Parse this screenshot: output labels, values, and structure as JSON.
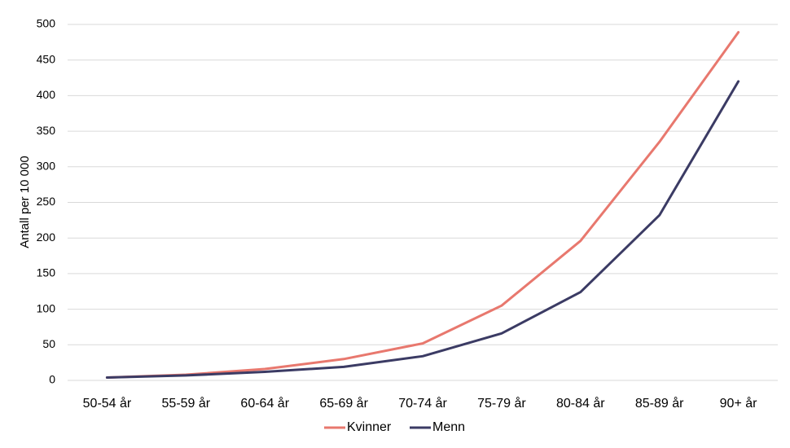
{
  "chart_data": {
    "type": "line",
    "categories": [
      "50-54 år",
      "55-59 år",
      "60-64 år",
      "65-69 år",
      "70-74 år",
      "75-79 år",
      "80-84 år",
      "85-89 år",
      "90+  år"
    ],
    "series": [
      {
        "name": "Kvinner",
        "color": "#E8786E",
        "values": [
          4,
          8,
          16,
          30,
          52,
          105,
          196,
          335,
          489
        ]
      },
      {
        "name": "Menn",
        "color": "#3B3B64",
        "values": [
          4,
          7,
          12,
          19,
          34,
          66,
          124,
          232,
          420
        ]
      }
    ],
    "title": "",
    "xlabel": "",
    "ylabel": "Antall per 10 000",
    "ylim": [
      0,
      500
    ],
    "yticks": [
      "0",
      "50",
      "100",
      "150",
      "200",
      "250",
      "300",
      "350",
      "400",
      "450",
      "500"
    ],
    "grid": true,
    "legend": "bottom"
  }
}
